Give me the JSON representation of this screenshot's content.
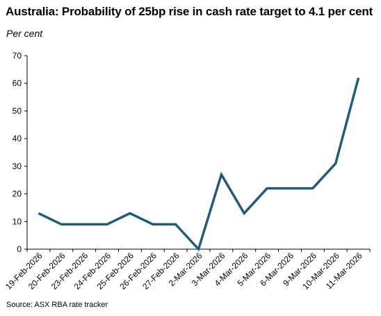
{
  "chart_data": {
    "type": "line",
    "title": "Australia: Probability of 25bp rise in cash rate target to 4.1 per cent",
    "unit_label": "Per cent",
    "source": "Source: ASX RBA rate tracker",
    "categories": [
      "19-Feb-2026",
      "20-Feb-2026",
      "23-Feb-2026",
      "24-Feb-2026",
      "25-Feb-2026",
      "26-Feb-2026",
      "27-Feb-2026",
      "2-Mar-2026",
      "3-Mar-2026",
      "4-Mar-2026",
      "5-Mar-2026",
      "6-Mar-2026",
      "9-Mar-2026",
      "10-Mar-2026",
      "11-Mar-2026"
    ],
    "series": [
      {
        "values": [
          13,
          9,
          9,
          9,
          13,
          9,
          9,
          0,
          27,
          13,
          22,
          22,
          22,
          31,
          62
        ],
        "color": "#1f5c7a"
      }
    ],
    "ylim": [
      0,
      70
    ],
    "yticks": [
      0,
      10,
      20,
      30,
      40,
      50,
      60,
      70
    ],
    "grid": false,
    "legend": "none"
  }
}
